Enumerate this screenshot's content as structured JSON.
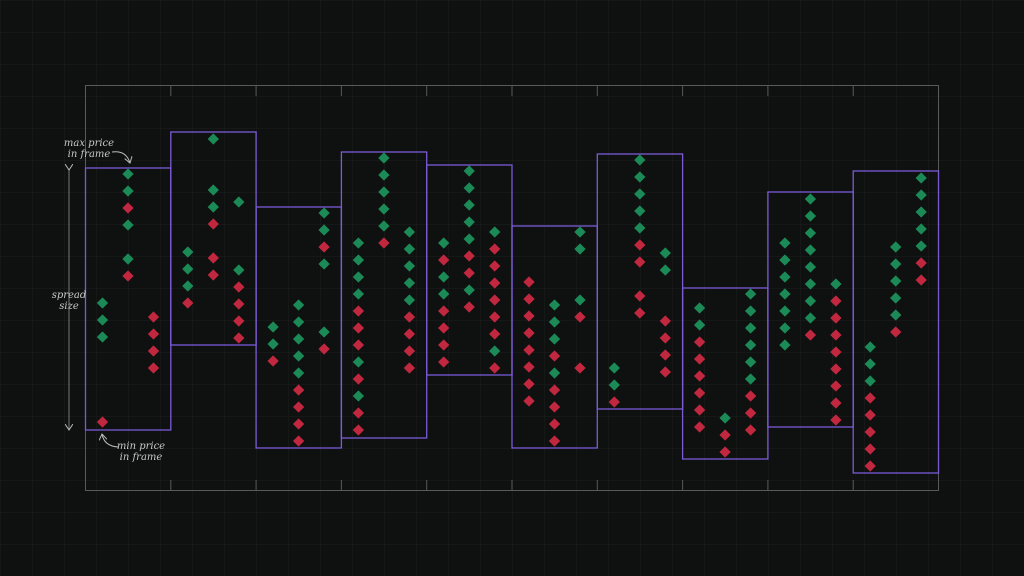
{
  "annotations": {
    "max_price": [
      "max price",
      "in frame"
    ],
    "min_price": [
      "min price",
      "in frame"
    ],
    "spread_size": [
      "spread",
      "size"
    ]
  }
}
